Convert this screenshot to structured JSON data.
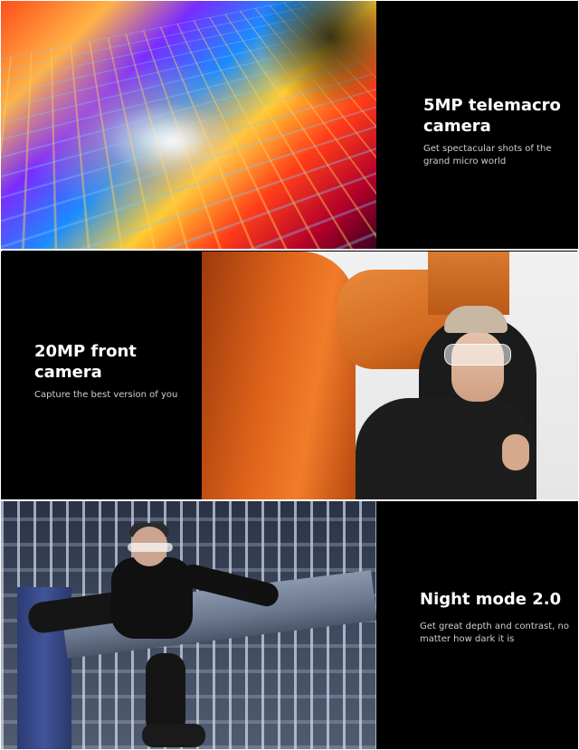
{
  "sections": [
    {
      "title": "5MP telemacro camera",
      "description": "Get spectacular shots of the grand micro world",
      "image": "macro-photo"
    },
    {
      "title": "20MP front camera",
      "description": "Capture the best version of you",
      "image": "selfie-photo"
    },
    {
      "title": "Night mode 2.0",
      "description": "Get great depth and contrast, no matter how dark it is",
      "image": "night-photo"
    }
  ],
  "colors": {
    "panel_background": "#000000",
    "title_text": "#ffffff",
    "description_text": "#cfcfcf"
  }
}
